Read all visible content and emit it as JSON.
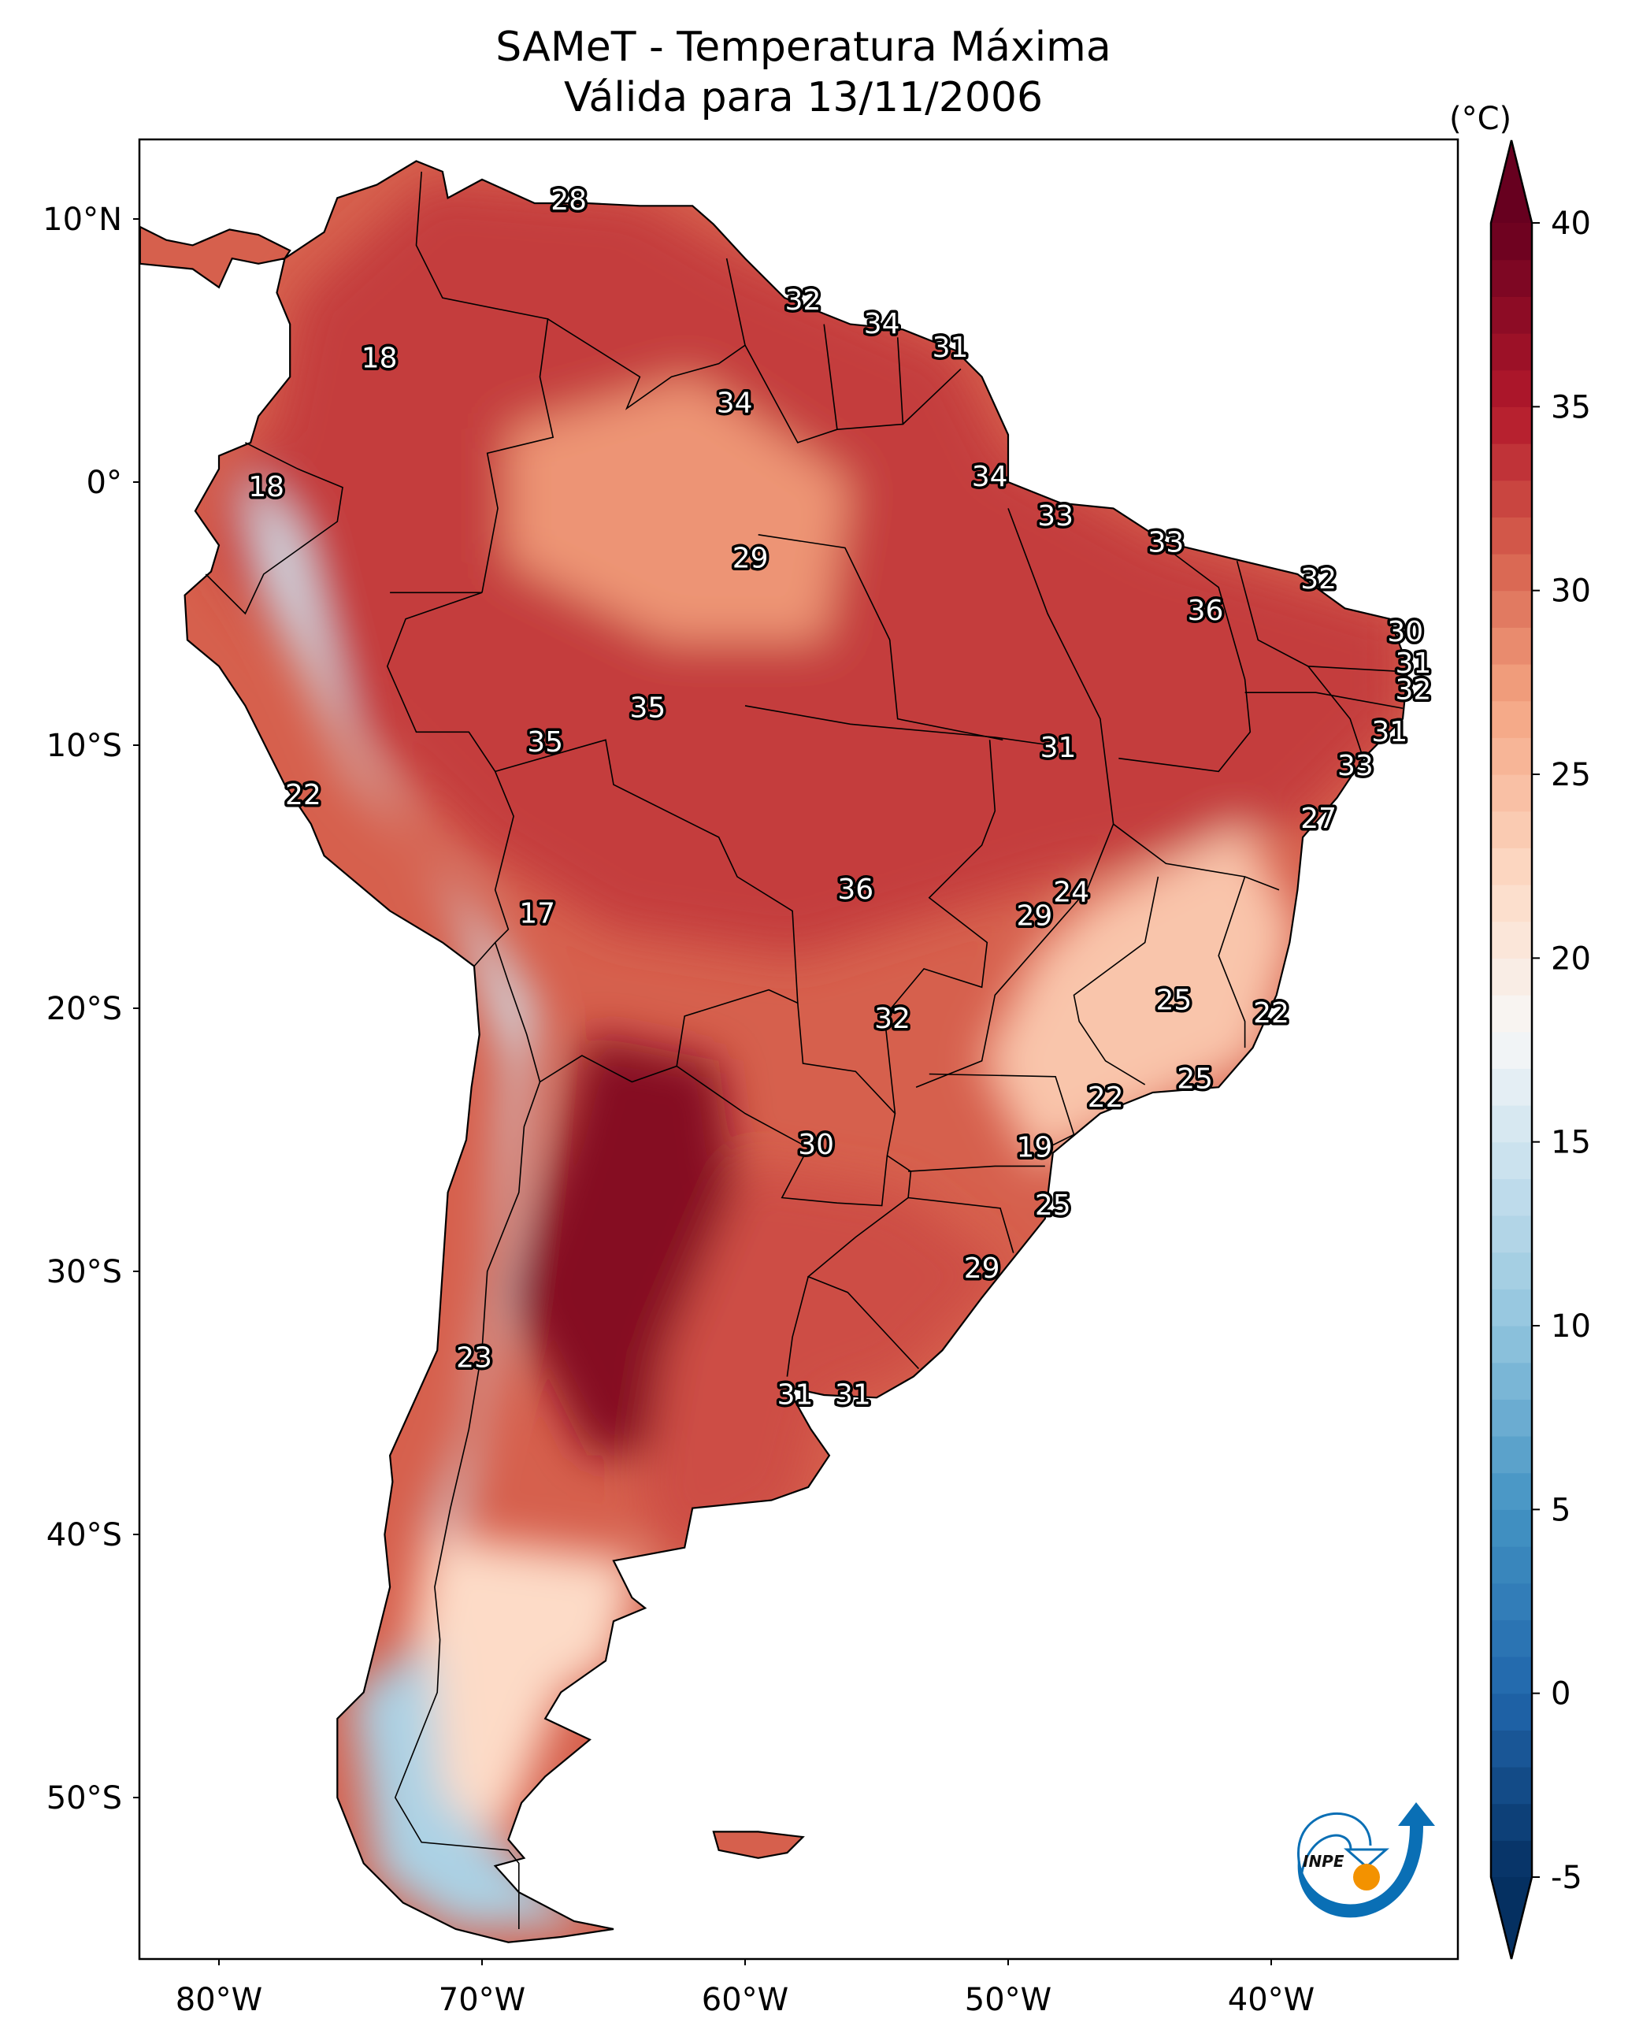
{
  "title": {
    "line1": "SAMeT - Temperatura Máxima",
    "line2": "Válida para 13/11/2006"
  },
  "chart_data": {
    "type": "heatmap",
    "title": "SAMeT - Temperatura Máxima Válida para 13/11/2006",
    "variable": "Maximum temperature",
    "units": "(°C)",
    "extent": {
      "lon": [
        -83,
        -33
      ],
      "lat": [
        -56,
        13
      ]
    },
    "xaxis": {
      "ticks": [
        -80,
        -70,
        -60,
        -50,
        -40
      ],
      "tick_labels": [
        "80°W",
        "70°W",
        "60°W",
        "50°W",
        "40°W"
      ]
    },
    "yaxis": {
      "ticks": [
        10,
        0,
        -10,
        -20,
        -30,
        -40,
        -50
      ],
      "tick_labels": [
        "10°N",
        "0°",
        "10°S",
        "20°S",
        "30°S",
        "40°S",
        "50°S"
      ]
    },
    "colorbar": {
      "colormap": "RdBu_r",
      "range": [
        -5,
        40
      ],
      "extend": "both",
      "ticks": [
        40,
        35,
        30,
        25,
        20,
        15,
        10,
        5,
        0,
        -5
      ],
      "stops": [
        {
          "v": -5,
          "c": "#053061"
        },
        {
          "v": 0,
          "c": "#2166ac"
        },
        {
          "v": 5,
          "c": "#4393c3"
        },
        {
          "v": 10,
          "c": "#92c5de"
        },
        {
          "v": 15,
          "c": "#d1e5f0"
        },
        {
          "v": 18,
          "c": "#f7f7f7"
        },
        {
          "v": 22,
          "c": "#fddbc7"
        },
        {
          "v": 27,
          "c": "#f4a582"
        },
        {
          "v": 31,
          "c": "#d6604d"
        },
        {
          "v": 35,
          "c": "#b2182b"
        },
        {
          "v": 40,
          "c": "#67001f"
        }
      ]
    },
    "point_labels": [
      {
        "value": "28",
        "lon": -66.7,
        "lat": 10.7
      },
      {
        "value": "32",
        "lon": -57.8,
        "lat": 6.9
      },
      {
        "value": "34",
        "lon": -54.8,
        "lat": 6.0
      },
      {
        "value": "31",
        "lon": -52.2,
        "lat": 5.1
      },
      {
        "value": "18",
        "lon": -73.9,
        "lat": 4.7
      },
      {
        "value": "34",
        "lon": -60.4,
        "lat": 3.0
      },
      {
        "value": "18",
        "lon": -78.2,
        "lat": -0.2
      },
      {
        "value": "34",
        "lon": -50.7,
        "lat": 0.2
      },
      {
        "value": "33",
        "lon": -48.2,
        "lat": -1.3
      },
      {
        "value": "29",
        "lon": -59.8,
        "lat": -2.9
      },
      {
        "value": "33",
        "lon": -44.0,
        "lat": -2.3
      },
      {
        "value": "32",
        "lon": -38.2,
        "lat": -3.7
      },
      {
        "value": "36",
        "lon": -42.5,
        "lat": -4.9
      },
      {
        "value": "30",
        "lon": -34.9,
        "lat": -5.7
      },
      {
        "value": "31",
        "lon": -34.6,
        "lat": -6.9
      },
      {
        "value": "32",
        "lon": -34.6,
        "lat": -7.9
      },
      {
        "value": "35",
        "lon": -63.7,
        "lat": -8.6
      },
      {
        "value": "35",
        "lon": -67.6,
        "lat": -9.9
      },
      {
        "value": "31",
        "lon": -48.1,
        "lat": -10.1
      },
      {
        "value": "31",
        "lon": -35.5,
        "lat": -9.5
      },
      {
        "value": "33",
        "lon": -36.8,
        "lat": -10.8
      },
      {
        "value": "22",
        "lon": -76.8,
        "lat": -11.9
      },
      {
        "value": "27",
        "lon": -38.2,
        "lat": -12.8
      },
      {
        "value": "36",
        "lon": -55.8,
        "lat": -15.5
      },
      {
        "value": "24",
        "lon": -47.6,
        "lat": -15.6
      },
      {
        "value": "29",
        "lon": -49.0,
        "lat": -16.5
      },
      {
        "value": "17",
        "lon": -67.9,
        "lat": -16.4
      },
      {
        "value": "25",
        "lon": -43.7,
        "lat": -19.7
      },
      {
        "value": "32",
        "lon": -54.4,
        "lat": -20.4
      },
      {
        "value": "22",
        "lon": -40.0,
        "lat": -20.2
      },
      {
        "value": "25",
        "lon": -42.9,
        "lat": -22.7
      },
      {
        "value": "22",
        "lon": -46.3,
        "lat": -23.4
      },
      {
        "value": "30",
        "lon": -57.3,
        "lat": -25.2
      },
      {
        "value": "19",
        "lon": -49.0,
        "lat": -25.3
      },
      {
        "value": "25",
        "lon": -48.3,
        "lat": -27.5
      },
      {
        "value": "29",
        "lon": -51.0,
        "lat": -29.9
      },
      {
        "value": "23",
        "lon": -70.3,
        "lat": -33.3
      },
      {
        "value": "31",
        "lon": -58.1,
        "lat": -34.7
      },
      {
        "value": "31",
        "lon": -55.9,
        "lat": -34.7
      }
    ],
    "field_regions": [
      {
        "name": "amazon-north",
        "value": 33,
        "poly": [
          [
            -80,
            0
          ],
          [
            -78,
            2
          ],
          [
            -77,
            7
          ],
          [
            -72,
            11.5
          ],
          [
            -64,
            10.8
          ],
          [
            -60,
            8.5
          ],
          [
            -52,
            5
          ],
          [
            -50,
            1
          ],
          [
            -44,
            -2.3
          ],
          [
            -35,
            -5
          ],
          [
            -35,
            -9
          ],
          [
            -39,
            -13
          ],
          [
            -48,
            -15
          ],
          [
            -58,
            -18
          ],
          [
            -65,
            -17
          ],
          [
            -70,
            -14
          ],
          [
            -76,
            -8
          ],
          [
            -80,
            -3
          ]
        ]
      },
      {
        "name": "amazon-central-light",
        "value": 28,
        "poly": [
          [
            -69,
            2
          ],
          [
            -62,
            4
          ],
          [
            -56,
            0
          ],
          [
            -57,
            -6
          ],
          [
            -63,
            -6
          ],
          [
            -69,
            -3
          ]
        ]
      },
      {
        "name": "east-brazil-cool",
        "value": 24,
        "poly": [
          [
            -47,
            -16
          ],
          [
            -41,
            -13
          ],
          [
            -39,
            -17
          ],
          [
            -40.5,
            -22
          ],
          [
            -45,
            -24
          ],
          [
            -49,
            -26
          ],
          [
            -51,
            -22
          ],
          [
            -49,
            -18
          ]
        ]
      },
      {
        "name": "chaco-hot",
        "value": 38,
        "poly": [
          [
            -66,
            -21
          ],
          [
            -61,
            -22
          ],
          [
            -60,
            -30
          ],
          [
            -62,
            -37
          ],
          [
            -66,
            -37
          ],
          [
            -69,
            -31
          ],
          [
            -67,
            -25
          ]
        ]
      },
      {
        "name": "pampas",
        "value": 32,
        "poly": [
          [
            -60,
            -26
          ],
          [
            -54,
            -27
          ],
          [
            -50,
            -30
          ],
          [
            -54,
            -34
          ],
          [
            -57,
            -35
          ],
          [
            -58,
            -39
          ],
          [
            -62,
            -41
          ],
          [
            -64,
            -39
          ],
          [
            -63,
            -33
          ]
        ]
      },
      {
        "name": "andes-cold",
        "value": 15,
        "poly": [
          [
            -78.5,
            0
          ],
          [
            -77,
            -2
          ],
          [
            -75,
            -10
          ],
          [
            -71,
            -16
          ],
          [
            -69,
            -22
          ],
          [
            -69.5,
            -30
          ],
          [
            -70.5,
            -36
          ],
          [
            -72,
            -40
          ],
          [
            -71,
            -40
          ],
          [
            -69.5,
            -33
          ],
          [
            -68.5,
            -25
          ],
          [
            -68,
            -20
          ],
          [
            -70.5,
            -16
          ],
          [
            -75,
            -11
          ],
          [
            -78,
            -4
          ],
          [
            -79,
            0
          ]
        ]
      },
      {
        "name": "patagonia-mild",
        "value": 22,
        "poly": [
          [
            -72,
            -40
          ],
          [
            -64,
            -41
          ],
          [
            -65,
            -45
          ],
          [
            -67,
            -46
          ],
          [
            -69,
            -51
          ],
          [
            -72,
            -52
          ],
          [
            -73,
            -46
          ]
        ]
      },
      {
        "name": "patagonia-cold",
        "value": 12,
        "poly": [
          [
            -75,
            -46
          ],
          [
            -72,
            -44
          ],
          [
            -71.5,
            -50
          ],
          [
            -68.5,
            -52.5
          ],
          [
            -66,
            -54.8
          ],
          [
            -71,
            -55
          ],
          [
            -74,
            -53
          ]
        ]
      }
    ]
  },
  "logo": {
    "text": "INPE"
  }
}
